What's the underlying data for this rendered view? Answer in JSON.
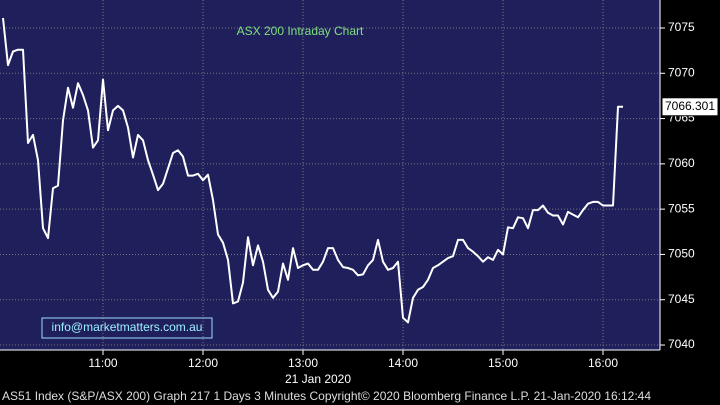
{
  "chart_data": {
    "type": "line",
    "title": "ASX 200 Intraday Chart",
    "watermark": "info@marketmatters.com.au",
    "xlabel": "21 Jan 2020",
    "footer": "AS51 Index (S&P/ASX 200) Graph 217 1 Days 3 Minutes Copyright© 2020 Bloomberg Finance L.P. 21-Jan-2020 16:12:44",
    "x": [
      600,
      603,
      606,
      609,
      612,
      615,
      618,
      621,
      624,
      627,
      630,
      633,
      636,
      639,
      642,
      645,
      648,
      651,
      654,
      657,
      660,
      663,
      666,
      669,
      672,
      675,
      678,
      681,
      684,
      687,
      690,
      693,
      696,
      699,
      702,
      705,
      708,
      711,
      714,
      717,
      720,
      723,
      726,
      729,
      732,
      735,
      738,
      741,
      744,
      747,
      750,
      753,
      756,
      759,
      762,
      765,
      768,
      771,
      774,
      777,
      780,
      783,
      786,
      789,
      792,
      795,
      798,
      801,
      804,
      807,
      810,
      813,
      816,
      819,
      822,
      825,
      828,
      831,
      834,
      837,
      840,
      843,
      846,
      849,
      852,
      855,
      858,
      861,
      864,
      867,
      870,
      873,
      876,
      879,
      882,
      885,
      888,
      891,
      894,
      897,
      900,
      903,
      906,
      909,
      912,
      915,
      918,
      921,
      924,
      927,
      930,
      933,
      936,
      939,
      942,
      945,
      948,
      951,
      954,
      957,
      960,
      963,
      966,
      969,
      972
    ],
    "series": [
      {
        "color": "#ffffff",
        "values": [
          7076.1,
          7070.9,
          7072.4,
          7072.6,
          7072.6,
          7062.3,
          7063.2,
          7060.4,
          7052.9,
          7051.8,
          7057.3,
          7057.6,
          7064.8,
          7068.4,
          7066.2,
          7068.9,
          7067.6,
          7065.9,
          7061.8,
          7062.6,
          7069.3,
          7063.7,
          7065.9,
          7066.4,
          7065.9,
          7064.0,
          7060.7,
          7063.2,
          7062.6,
          7060.4,
          7058.8,
          7057.1,
          7057.8,
          7059.5,
          7061.2,
          7061.5,
          7060.8,
          7058.7,
          7058.7,
          7058.9,
          7058.2,
          7058.8,
          7056.0,
          7052.2,
          7051.3,
          7049.4,
          7044.6,
          7044.8,
          7046.9,
          7051.9,
          7048.8,
          7051.0,
          7049.2,
          7046.1,
          7045.2,
          7045.9,
          7049.0,
          7047.2,
          7050.7,
          7048.5,
          7048.8,
          7049.0,
          7048.3,
          7048.3,
          7049.2,
          7050.7,
          7050.7,
          7049.4,
          7048.6,
          7048.5,
          7048.3,
          7047.7,
          7047.8,
          7048.8,
          7049.4,
          7051.6,
          7049.2,
          7048.3,
          7048.5,
          7049.2,
          7043.0,
          7042.5,
          7045.2,
          7046.1,
          7046.4,
          7047.2,
          7048.5,
          7048.8,
          7049.2,
          7049.6,
          7049.8,
          7051.6,
          7051.6,
          7050.7,
          7050.3,
          7049.8,
          7049.2,
          7049.7,
          7049.4,
          7050.5,
          7050.0,
          7053.0,
          7052.9,
          7054.1,
          7054.0,
          7052.9,
          7054.9,
          7054.9,
          7055.4,
          7054.6,
          7054.3,
          7054.3,
          7053.3,
          7054.7,
          7054.4,
          7054.1,
          7054.9,
          7055.6,
          7055.8,
          7055.8,
          7055.4,
          7055.4,
          7055.4,
          7066.3,
          7066.301
        ]
      }
    ],
    "xlim": [
      598.2,
      994.2
    ],
    "xticks": [
      {
        "value": 660,
        "label": "11:00"
      },
      {
        "value": 720,
        "label": "12:00"
      },
      {
        "value": 780,
        "label": "13:00"
      },
      {
        "value": 840,
        "label": "14:00"
      },
      {
        "value": 900,
        "label": "15:00"
      },
      {
        "value": 960,
        "label": "16:00"
      }
    ],
    "ylim": [
      7039.45,
      7078.09
    ],
    "yticks": [
      7040,
      7045,
      7050,
      7055,
      7060,
      7065,
      7070,
      7075
    ],
    "grid": true,
    "background": "#1f1f5c"
  }
}
